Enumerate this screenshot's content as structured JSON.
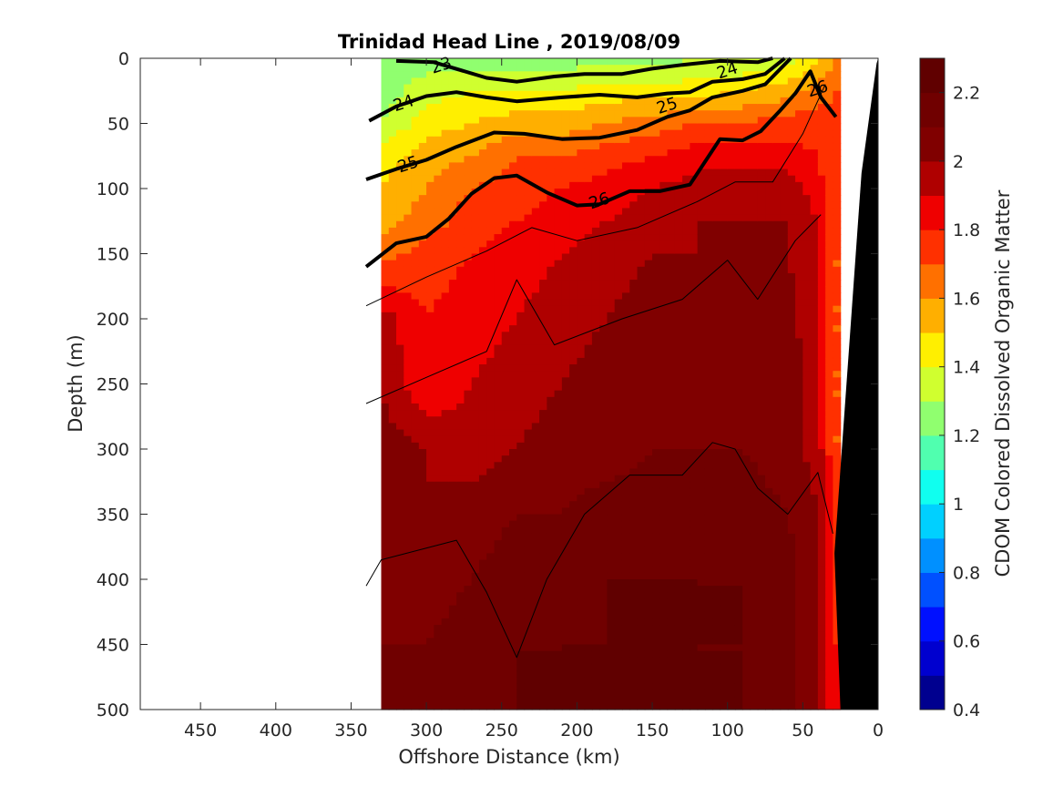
{
  "chart_data": {
    "type": "heatmap",
    "title": "Trinidad Head Line , 2019/08/09",
    "xlabel": "Offshore Distance (km)",
    "ylabel": "Depth (m)",
    "xlim": [
      490,
      0
    ],
    "ylim": [
      500,
      0
    ],
    "x_reversed": true,
    "y_reversed": true,
    "xticks": [
      "450",
      "400",
      "350",
      "300",
      "250",
      "200",
      "150",
      "100",
      "50",
      "0"
    ],
    "xtick_values": [
      450,
      400,
      350,
      300,
      250,
      200,
      150,
      100,
      50,
      0
    ],
    "yticks": [
      "0",
      "50",
      "100",
      "150",
      "200",
      "250",
      "300",
      "350",
      "400",
      "450",
      "500"
    ],
    "ytick_values": [
      0,
      50,
      100,
      150,
      200,
      250,
      300,
      350,
      400,
      450,
      500
    ],
    "colorbar": {
      "label": "CDOM Colored Dissolved Organic Matter",
      "range": [
        0.4,
        2.3
      ],
      "ticks": [
        "0.4",
        "0.6",
        "0.8",
        "1",
        "1.2",
        "1.4",
        "1.6",
        "1.8",
        "2",
        "2.2"
      ],
      "tick_values": [
        0.4,
        0.6,
        0.8,
        1.0,
        1.2,
        1.4,
        1.6,
        1.8,
        2.0,
        2.2
      ],
      "levels": [
        0.4,
        0.5,
        0.6,
        0.7,
        0.8,
        0.9,
        1.0,
        1.1,
        1.2,
        1.3,
        1.4,
        1.5,
        1.6,
        1.7,
        1.8,
        1.9,
        2.0,
        2.1,
        2.2,
        2.3
      ],
      "colormap": "jet",
      "colors": [
        "#00008f",
        "#0000cf",
        "#0010ff",
        "#0050ff",
        "#0090ff",
        "#00d0ff",
        "#10ffef",
        "#50ffaf",
        "#90ff6f",
        "#d0ff2f",
        "#ffef00",
        "#ffaf00",
        "#ff7000",
        "#ff3000",
        "#ef0000",
        "#af0000",
        "#800000",
        "#700000",
        "#600000"
      ]
    },
    "section_x_range": [
      340,
      20
    ],
    "data_x_range": [
      330,
      25
    ],
    "cdom_grid": {
      "x": [
        330,
        300,
        270,
        240,
        210,
        180,
        150,
        120,
        90,
        60,
        40,
        28
      ],
      "depth": [
        0,
        25,
        50,
        75,
        100,
        125,
        150,
        200,
        250,
        300,
        350,
        400,
        450,
        500
      ],
      "values": [
        [
          1.3,
          1.25,
          1.25,
          1.25,
          1.25,
          1.25,
          1.25,
          1.3,
          1.3,
          1.35,
          1.5,
          1.6
        ],
        [
          1.25,
          1.35,
          1.4,
          1.4,
          1.4,
          1.45,
          1.45,
          1.45,
          1.5,
          1.55,
          1.65,
          1.7
        ],
        [
          1.3,
          1.45,
          1.5,
          1.55,
          1.55,
          1.6,
          1.65,
          1.7,
          1.7,
          1.75,
          1.75,
          1.7
        ],
        [
          1.45,
          1.55,
          1.6,
          1.7,
          1.7,
          1.75,
          1.8,
          1.85,
          1.85,
          1.85,
          1.8,
          1.7
        ],
        [
          1.5,
          1.6,
          1.7,
          1.75,
          1.8,
          1.85,
          1.9,
          1.95,
          1.95,
          1.95,
          1.85,
          1.7
        ],
        [
          1.55,
          1.65,
          1.75,
          1.8,
          1.85,
          1.9,
          1.95,
          2.0,
          2.0,
          2.0,
          1.9,
          1.7
        ],
        [
          1.65,
          1.75,
          1.8,
          1.85,
          1.9,
          1.95,
          2.0,
          2.0,
          2.05,
          2.0,
          1.9,
          1.7
        ],
        [
          1.95,
          1.8,
          1.85,
          1.9,
          1.95,
          2.0,
          2.05,
          2.05,
          2.05,
          2.05,
          1.9,
          1.7
        ],
        [
          2.0,
          1.8,
          1.9,
          1.95,
          2.0,
          2.05,
          2.05,
          2.1,
          2.05,
          2.05,
          1.95,
          1.7
        ],
        [
          2.05,
          2.0,
          1.95,
          2.0,
          2.05,
          2.05,
          2.1,
          2.1,
          2.1,
          2.05,
          1.95,
          1.7
        ],
        [
          2.05,
          2.0,
          2.05,
          2.1,
          2.1,
          2.15,
          2.15,
          2.15,
          2.15,
          2.1,
          2.0,
          1.75
        ],
        [
          2.1,
          2.05,
          2.1,
          2.15,
          2.15,
          2.2,
          2.2,
          2.2,
          2.2,
          2.15,
          2.0,
          1.75
        ],
        [
          2.1,
          2.1,
          2.15,
          2.2,
          2.2,
          2.2,
          2.25,
          2.2,
          2.2,
          2.15,
          2.0,
          1.8
        ],
        [
          2.15,
          2.1,
          2.15,
          2.2,
          2.2,
          2.25,
          2.25,
          2.2,
          2.2,
          2.15,
          2.0,
          1.8
        ]
      ]
    },
    "density_contours": [
      {
        "level": "23",
        "bold": true,
        "points": [
          [
            320,
            2
          ],
          [
            295,
            3
          ],
          [
            260,
            15
          ],
          [
            240,
            18
          ],
          [
            215,
            14
          ],
          [
            195,
            12
          ],
          [
            170,
            12
          ],
          [
            150,
            8
          ],
          [
            130,
            5
          ],
          [
            105,
            2
          ],
          [
            80,
            3
          ],
          [
            70,
            0
          ]
        ]
      },
      {
        "level": "24",
        "bold": true,
        "points": [
          [
            338,
            48
          ],
          [
            320,
            37
          ],
          [
            300,
            29
          ],
          [
            280,
            26
          ],
          [
            260,
            30
          ],
          [
            240,
            33
          ],
          [
            210,
            30
          ],
          [
            185,
            28
          ],
          [
            160,
            30
          ],
          [
            140,
            27
          ],
          [
            125,
            26
          ],
          [
            110,
            18
          ],
          [
            90,
            16
          ],
          [
            75,
            12
          ],
          [
            62,
            0
          ]
        ]
      },
      {
        "level": "25",
        "bold": true,
        "points": [
          [
            340,
            93
          ],
          [
            320,
            85
          ],
          [
            300,
            78
          ],
          [
            280,
            68
          ],
          [
            255,
            57
          ],
          [
            235,
            58
          ],
          [
            210,
            62
          ],
          [
            185,
            61
          ],
          [
            160,
            55
          ],
          [
            140,
            45
          ],
          [
            125,
            40
          ],
          [
            110,
            30
          ],
          [
            90,
            25
          ],
          [
            75,
            20
          ],
          [
            58,
            0
          ]
        ]
      },
      {
        "level": "26",
        "bold": true,
        "points": [
          [
            340,
            160
          ],
          [
            320,
            142
          ],
          [
            300,
            137
          ],
          [
            285,
            123
          ],
          [
            270,
            104
          ],
          [
            255,
            92
          ],
          [
            240,
            90
          ],
          [
            220,
            103
          ],
          [
            200,
            113
          ],
          [
            185,
            112
          ],
          [
            165,
            102
          ],
          [
            145,
            102
          ],
          [
            125,
            97
          ],
          [
            105,
            62
          ],
          [
            90,
            63
          ],
          [
            78,
            56
          ],
          [
            65,
            40
          ],
          [
            55,
            27
          ],
          [
            45,
            10
          ],
          [
            38,
            30
          ],
          [
            28,
            45
          ]
        ]
      },
      {
        "level": "",
        "bold": false,
        "points": [
          [
            340,
            190
          ],
          [
            300,
            168
          ],
          [
            260,
            148
          ],
          [
            230,
            130
          ],
          [
            200,
            140
          ],
          [
            160,
            130
          ],
          [
            120,
            110
          ],
          [
            95,
            95
          ],
          [
            70,
            95
          ],
          [
            50,
            58
          ],
          [
            35,
            20
          ]
        ]
      },
      {
        "level": "",
        "bold": false,
        "points": [
          [
            340,
            265
          ],
          [
            300,
            245
          ],
          [
            260,
            225
          ],
          [
            240,
            170
          ],
          [
            215,
            220
          ],
          [
            170,
            200
          ],
          [
            130,
            185
          ],
          [
            100,
            155
          ],
          [
            80,
            185
          ],
          [
            55,
            140
          ],
          [
            38,
            120
          ]
        ]
      },
      {
        "level": "",
        "bold": false,
        "points": [
          [
            340,
            405
          ],
          [
            330,
            385
          ],
          [
            280,
            370
          ],
          [
            260,
            410
          ],
          [
            240,
            460
          ],
          [
            220,
            400
          ],
          [
            195,
            350
          ],
          [
            165,
            320
          ],
          [
            130,
            320
          ],
          [
            110,
            295
          ],
          [
            95,
            300
          ],
          [
            80,
            330
          ],
          [
            60,
            350
          ],
          [
            40,
            318
          ],
          [
            30,
            365
          ]
        ]
      }
    ],
    "contour_labels": [
      {
        "text": "23",
        "x": 290,
        "y": 6
      },
      {
        "text": "24",
        "x": 100,
        "y": 10
      },
      {
        "text": "24",
        "x": 315,
        "y": 35
      },
      {
        "text": "25",
        "x": 140,
        "y": 37
      },
      {
        "text": "25",
        "x": 312,
        "y": 82
      },
      {
        "text": "26",
        "x": 40,
        "y": 24
      },
      {
        "text": "26",
        "x": 185,
        "y": 110
      }
    ],
    "bathymetry_black": true
  }
}
